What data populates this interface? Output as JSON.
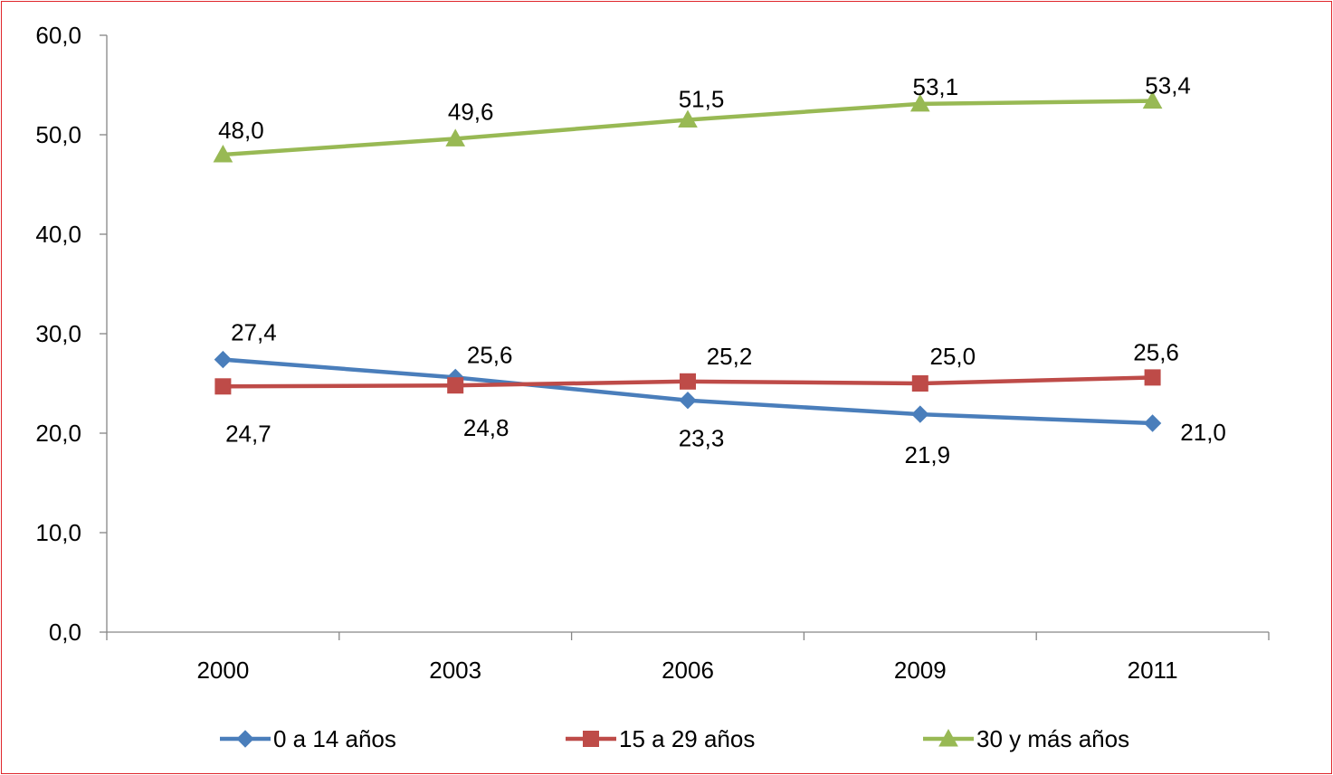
{
  "chart_data": {
    "type": "line",
    "categories": [
      "2000",
      "2003",
      "2006",
      "2009",
      "2011"
    ],
    "ylim": [
      0,
      60
    ],
    "yticks": [
      "0,0",
      "10,0",
      "20,0",
      "30,0",
      "40,0",
      "50,0",
      "60,0"
    ],
    "grid": false,
    "legend_position": "bottom",
    "series": [
      {
        "name": "0 a 14 años",
        "values": [
          27.4,
          25.6,
          23.3,
          21.9,
          21.0
        ],
        "labels": [
          "27,4",
          "25,6",
          "23,3",
          "21,9",
          "21,0"
        ],
        "color": "#4a7ebb",
        "marker": "diamond"
      },
      {
        "name": "15 a 29 años",
        "values": [
          24.7,
          24.8,
          25.2,
          25.0,
          25.6
        ],
        "labels": [
          "24,7",
          "24,8",
          "25,2",
          "25,0",
          "25,6"
        ],
        "color": "#be4b48",
        "marker": "square"
      },
      {
        "name": "30 y más años",
        "values": [
          48.0,
          49.6,
          51.5,
          53.1,
          53.4
        ],
        "labels": [
          "48,0",
          "49,6",
          "51,5",
          "53,1",
          "53,4"
        ],
        "color": "#98b954",
        "marker": "triangle"
      }
    ]
  }
}
